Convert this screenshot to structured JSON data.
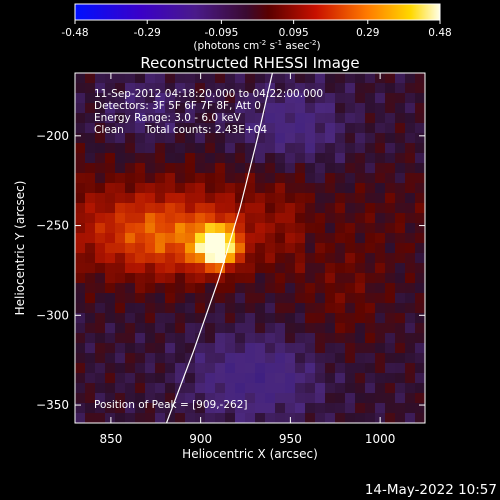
{
  "chart_data": {
    "type": "heatmap",
    "title": "Reconstructed RHESSI Image",
    "xlabel": "Heliocentric X (arcsec)",
    "ylabel": "Heliocentric Y (arcsec)",
    "xlim": [
      830,
      1025
    ],
    "ylim": [
      -360,
      -165
    ],
    "x_ticks": [
      850,
      900,
      950,
      1000
    ],
    "y_ticks": [
      -200,
      -250,
      -300,
      -350
    ],
    "colorbar": {
      "range": [
        -0.48,
        0.48
      ],
      "ticks": [
        -0.48,
        -0.29,
        -0.095,
        0.095,
        0.29,
        0.48
      ],
      "tick_labels": [
        "-0.48",
        "-0.29",
        "-0.095",
        "0.095",
        "0.29",
        "0.48"
      ],
      "unit_label": "(photons cm",
      "unit_exp1": "-2",
      "unit_mid": " s",
      "unit_exp2": "-1",
      "unit_end": " asec",
      "unit_exp3": "-2",
      "unit_close": ")"
    },
    "annotations": {
      "time": "11-Sep-2012 04:18:20.000 to 04:22:00.000",
      "detectors": "Detectors: 3F 5F 6F 7F 8F, Att 0",
      "energy": "Energy Range: 3.0 - 6.0 keV",
      "clean": "Clean",
      "counts": "Total counts: 2.43E+04",
      "peak": "Position of Peak = [909,-262]"
    },
    "peak_position": [
      909,
      -262
    ],
    "limb_curve": [
      [
        940,
        -165
      ],
      [
        932,
        -200
      ],
      [
        922,
        -240
      ],
      [
        910,
        -280
      ],
      [
        896,
        -320
      ],
      [
        881,
        -360
      ]
    ],
    "date_stamp": "14-May-2022 10:57"
  }
}
